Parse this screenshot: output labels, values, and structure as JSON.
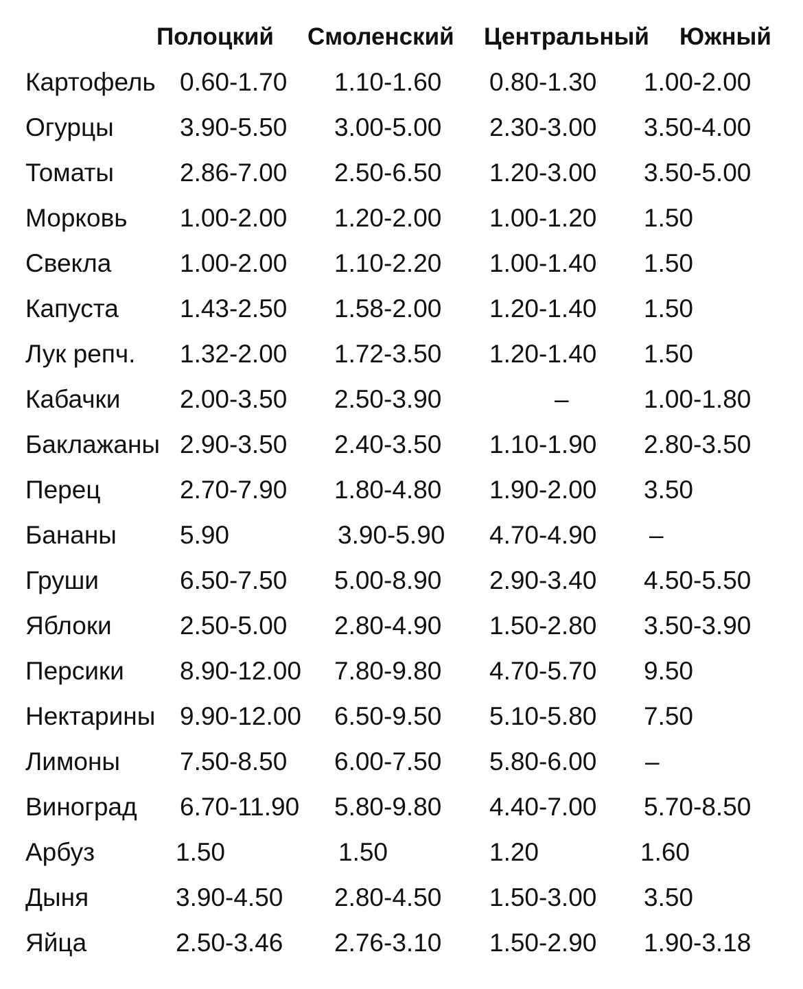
{
  "table": {
    "header": [
      "Полоцкий",
      "Смоленский",
      "Центральный",
      "Южный"
    ],
    "rows": [
      [
        "Картофель",
        "0.60-1.70",
        "1.10-1.60",
        "0.80-1.30",
        "1.00-2.00"
      ],
      [
        "Огурцы",
        "3.90-5.50",
        "3.00-5.00",
        "2.30-3.00",
        "3.50-4.00"
      ],
      [
        "Томаты",
        "2.86-7.00",
        "2.50-6.50",
        "1.20-3.00",
        "3.50-5.00"
      ],
      [
        "Морковь",
        "1.00-2.00",
        "1.20-2.00",
        "1.00-1.20",
        "1.50"
      ],
      [
        "Свекла",
        "1.00-2.00",
        "1.10-2.20",
        "1.00-1.40",
        "1.50"
      ],
      [
        "Капуста",
        "1.43-2.50",
        "1.58-2.00",
        "1.20-1.40",
        "1.50"
      ],
      [
        "Лук репч.",
        "1.32-2.00",
        "1.72-3.50",
        "1.20-1.40",
        "1.50"
      ],
      [
        "Кабачки",
        "2.00-3.50",
        "2.50-3.90",
        "–",
        "1.00-1.80"
      ],
      [
        "Баклажаны",
        "2.90-3.50",
        "2.40-3.50",
        "1.10-1.90",
        "2.80-3.50"
      ],
      [
        "Перец",
        "2.70-7.90",
        "1.80-4.80",
        "1.90-2.00",
        "3.50"
      ],
      [
        "Бананы",
        "5.90",
        "3.90-5.90",
        "4.70-4.90",
        "–"
      ],
      [
        "Груши",
        "6.50-7.50",
        "5.00-8.90",
        "2.90-3.40",
        "4.50-5.50"
      ],
      [
        "Яблоки",
        "2.50-5.00",
        "2.80-4.90",
        "1.50-2.80",
        "3.50-3.90"
      ],
      [
        "Персики",
        "8.90-12.00",
        "7.80-9.80",
        "4.70-5.70",
        "9.50"
      ],
      [
        "Нектарины",
        "9.90-12.00",
        "6.50-9.50",
        "5.10-5.80",
        "7.50"
      ],
      [
        "Лимоны",
        "7.50-8.50",
        "6.00-7.50",
        "5.80-6.00",
        "–"
      ],
      [
        "Виноград",
        "6.70-11.90",
        "5.80-9.80",
        "4.40-7.00",
        "5.70-8.50"
      ],
      [
        "Арбуз",
        "1.50",
        "1.50",
        "1.20",
        "1.60"
      ],
      [
        "Дыня",
        "3.90-4.50",
        "2.80-4.50",
        "1.50-3.00",
        "3.50"
      ],
      [
        "Яйца",
        "2.50-3.46",
        "2.76-3.10",
        "1.50-2.90",
        "1.90-3.18"
      ]
    ]
  }
}
